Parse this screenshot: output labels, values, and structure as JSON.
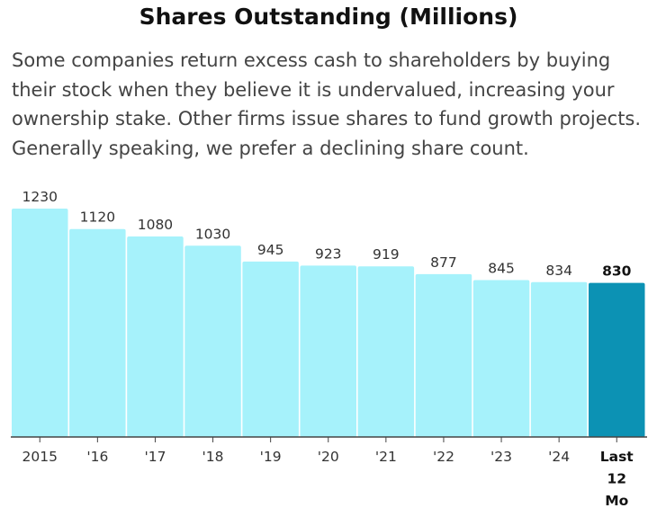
{
  "header": {
    "title": "Shares Outstanding (Millions)",
    "subtitle": "Some companies return excess cash to shareholders by buying their stock when they believe it is undervalued, increasing your ownership stake. Other firms issue shares to fund growth projects. Generally speaking, we prefer a declining share count."
  },
  "colors": {
    "bar": "#a6f2fb",
    "highlight_bar": "#0c92b4",
    "axis": "#444444"
  },
  "chart_data": {
    "type": "bar",
    "title": "Shares Outstanding (Millions)",
    "xlabel": "",
    "ylabel": "",
    "grid": false,
    "ylim": [
      0,
      1280
    ],
    "categories": [
      "2015",
      "'16",
      "'17",
      "'18",
      "'19",
      "'20",
      "'21",
      "'22",
      "'23",
      "'24",
      "Last 12 Mo"
    ],
    "category_lines": [
      [
        "2015"
      ],
      [
        "'16"
      ],
      [
        "'17"
      ],
      [
        "'18"
      ],
      [
        "'19"
      ],
      [
        "'20"
      ],
      [
        "'21"
      ],
      [
        "'22"
      ],
      [
        "'23"
      ],
      [
        "'24"
      ],
      [
        "Last",
        "12",
        "Mo"
      ]
    ],
    "values": [
      1230,
      1120,
      1080,
      1030,
      945,
      923,
      919,
      877,
      845,
      834,
      830
    ],
    "value_labels": [
      "1230",
      "1120",
      "1080",
      "1030",
      "945",
      "923",
      "919",
      "877",
      "845",
      "834",
      "830"
    ],
    "highlight_index": 10
  }
}
